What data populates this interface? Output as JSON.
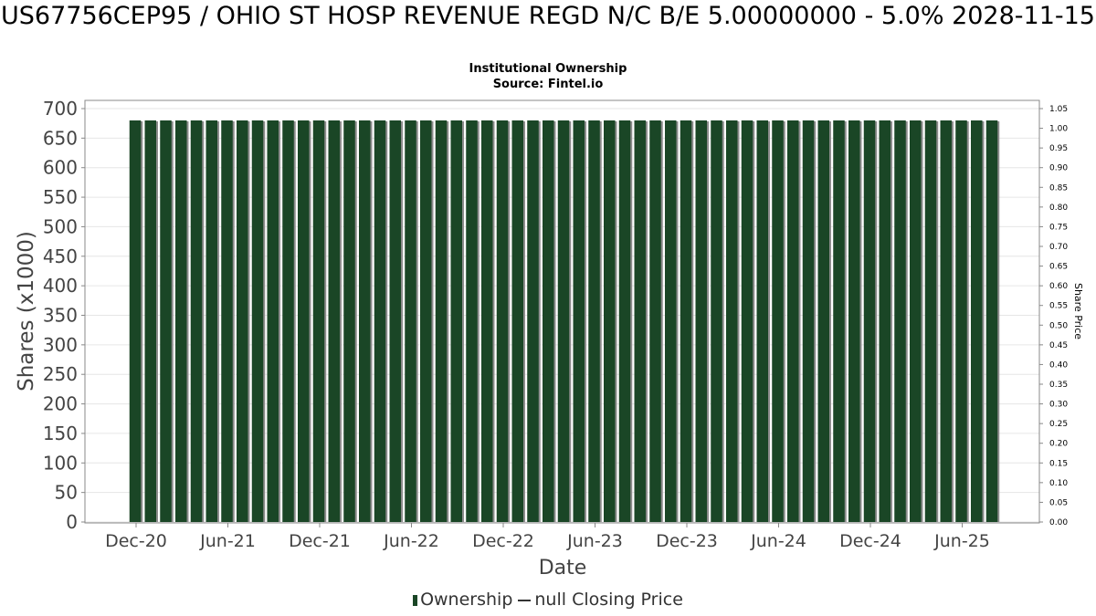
{
  "title": "US67756CEP95 / OHIO ST HOSP REVENUE REGD N/C B/E 5.00000000 - 5.0% 2028-11-15",
  "subtitle": "Institutional Ownership",
  "source": "Source: Fintel.io",
  "legend": {
    "ownership": "Ownership",
    "price": "null Closing Price"
  },
  "colors": {
    "bar": "#1a4626",
    "bar_shadow": "#8c8c8c",
    "grid": "#e6e6e6"
  },
  "chart_data": {
    "type": "bar",
    "xlabel": "Date",
    "ylabel": "Shares (x1000)",
    "y2label": "Share Price",
    "ylim": [
      0,
      700
    ],
    "y2lim": [
      0,
      1.05
    ],
    "yticks": [
      "0",
      "50",
      "100",
      "150",
      "200",
      "250",
      "300",
      "350",
      "400",
      "450",
      "500",
      "550",
      "600",
      "650",
      "700"
    ],
    "y2ticks": [
      "0.00",
      "0.05",
      "0.10",
      "0.15",
      "0.20",
      "0.25",
      "0.30",
      "0.35",
      "0.40",
      "0.45",
      "0.50",
      "0.55",
      "0.60",
      "0.65",
      "0.70",
      "0.75",
      "0.80",
      "0.85",
      "0.90",
      "0.95",
      "1.00",
      "1.05"
    ],
    "xticks": [
      "Dec-20",
      "Jun-21",
      "Dec-21",
      "Jun-22",
      "Dec-22",
      "Jun-23",
      "Dec-23",
      "Jun-24",
      "Dec-24",
      "Jun-25"
    ],
    "series": [
      {
        "name": "Ownership",
        "categories": [
          "2020-12",
          "2021-01",
          "2021-02",
          "2021-03",
          "2021-04",
          "2021-05",
          "2021-06",
          "2021-07",
          "2021-08",
          "2021-09",
          "2021-10",
          "2021-11",
          "2021-12",
          "2022-01",
          "2022-02",
          "2022-03",
          "2022-04",
          "2022-05",
          "2022-06",
          "2022-07",
          "2022-08",
          "2022-09",
          "2022-10",
          "2022-11",
          "2022-12",
          "2023-01",
          "2023-02",
          "2023-03",
          "2023-04",
          "2023-05",
          "2023-06",
          "2023-07",
          "2023-08",
          "2023-09",
          "2023-10",
          "2023-11",
          "2023-12",
          "2024-01",
          "2024-02",
          "2024-03",
          "2024-04",
          "2024-05",
          "2024-06",
          "2024-07",
          "2024-08",
          "2024-09",
          "2024-10",
          "2024-11",
          "2024-12",
          "2025-01",
          "2025-02",
          "2025-03",
          "2025-04",
          "2025-05",
          "2025-06",
          "2025-07",
          "2025-08"
        ],
        "values": [
          680,
          680,
          680,
          680,
          680,
          680,
          680,
          680,
          680,
          680,
          680,
          680,
          680,
          680,
          680,
          680,
          680,
          680,
          680,
          680,
          680,
          680,
          680,
          680,
          680,
          680,
          680,
          680,
          680,
          680,
          680,
          680,
          680,
          680,
          680,
          680,
          680,
          680,
          680,
          680,
          680,
          680,
          680,
          680,
          680,
          680,
          680,
          680,
          680,
          680,
          680,
          680,
          680,
          680,
          680,
          680,
          680
        ]
      }
    ]
  }
}
